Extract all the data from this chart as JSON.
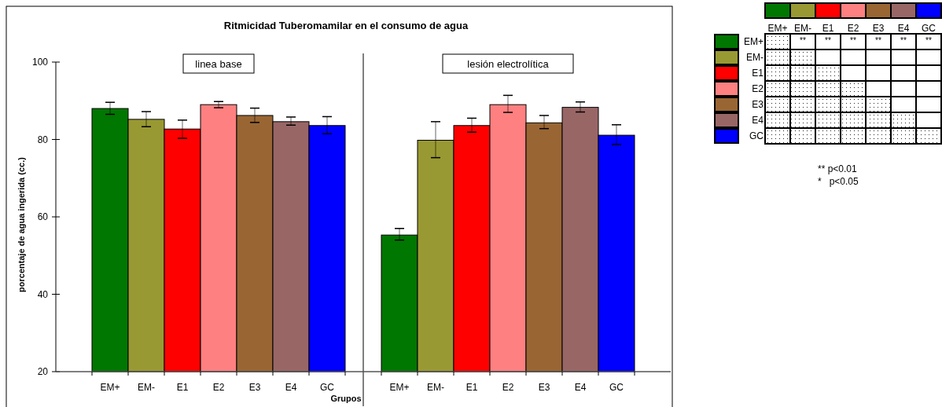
{
  "chart_data": [
    {
      "type": "bar",
      "title": "Ritmicidad Tuberomamilar en el consumo de agua",
      "xlabel": "Grupos",
      "ylabel": "porcentaje de agua ingerida (cc.)",
      "categories": [
        "EM+",
        "EM-",
        "E1",
        "E2",
        "E3",
        "E4",
        "GC",
        null,
        "EM+",
        "EM-",
        "E1",
        "E2",
        "E3",
        "E4",
        "GC"
      ],
      "values": [
        88.0,
        85.2,
        82.7,
        89.0,
        86.2,
        84.6,
        83.6,
        null,
        55.3,
        79.8,
        83.6,
        89.0,
        84.3,
        88.3,
        81.1
      ],
      "errors": [
        [
          86.5,
          89.6
        ],
        [
          83.3,
          87.2
        ],
        [
          80.3,
          85.0
        ],
        [
          88.2,
          89.8
        ],
        [
          84.4,
          88.1
        ],
        [
          83.7,
          85.8
        ],
        [
          81.5,
          85.9
        ],
        null,
        [
          54.0,
          57.0
        ],
        [
          75.3,
          84.6
        ],
        [
          81.9,
          85.5
        ],
        [
          87.0,
          91.4
        ],
        [
          82.8,
          86.2
        ],
        [
          87.1,
          89.7
        ],
        [
          78.7,
          83.8
        ]
      ],
      "colors": [
        "#007700",
        "#999933",
        "#ff0000",
        "#ff8080",
        "#996633",
        "#996666",
        "#0000ff",
        null,
        "#007700",
        "#999933",
        "#ff0000",
        "#ff8080",
        "#996633",
        "#996666",
        "#0000ff"
      ],
      "ylim": [
        20,
        100
      ],
      "yticks": [
        20,
        40,
        60,
        80,
        100
      ],
      "annotations": [
        "linea base",
        "lesión electrolítica"
      ]
    },
    {
      "type": "other",
      "categories": [
        "EM+",
        "EM-",
        "E1",
        "E2",
        "E3",
        "E4",
        "GC"
      ],
      "y_categories": [
        "EM+",
        "EM-",
        "E1",
        "E2",
        "E3",
        "E4",
        "GC"
      ],
      "colors": [
        "#007700",
        "#999933",
        "#ff0000",
        "#ff8080",
        "#996633",
        "#996666",
        "#0000ff"
      ],
      "cell_labels": [
        [
          null,
          "**",
          "**",
          "**",
          "**",
          "**",
          "**"
        ],
        [
          null,
          null,
          null,
          null,
          null,
          null,
          null
        ],
        [
          null,
          null,
          null,
          null,
          null,
          null,
          null
        ],
        [
          null,
          null,
          null,
          null,
          null,
          null,
          null
        ],
        [
          null,
          null,
          null,
          null,
          null,
          null,
          null
        ],
        [
          null,
          null,
          null,
          null,
          null,
          null,
          null
        ],
        [
          null,
          null,
          null,
          null,
          null,
          null,
          null
        ]
      ],
      "annotations": [
        "** p<0.01",
        "*   p<0.05"
      ]
    }
  ]
}
